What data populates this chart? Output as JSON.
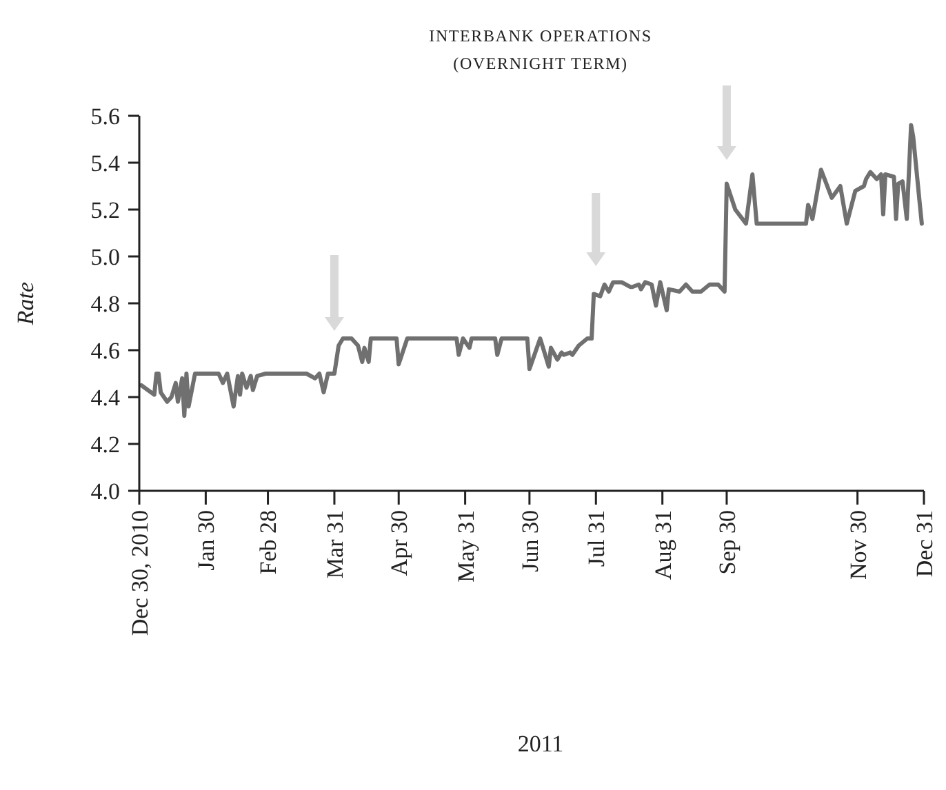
{
  "chart_data": {
    "type": "line",
    "title": "INTERBANK OPERATIONS",
    "subtitle": "(OVERNIGHT TERM)",
    "xlabel": "2011",
    "ylabel": "Rate",
    "xlim": [
      "2010-12-30",
      "2011-12-31"
    ],
    "xticks": [
      {
        "value": "2010-12-30",
        "label": "Dec 30, 2010"
      },
      {
        "value": "2011-01-30",
        "label": "Jan 30"
      },
      {
        "value": "2011-02-28",
        "label": "Feb 28"
      },
      {
        "value": "2011-03-31",
        "label": "Mar 31"
      },
      {
        "value": "2011-04-30",
        "label": "Apr 30"
      },
      {
        "value": "2011-05-31",
        "label": "May 31"
      },
      {
        "value": "2011-06-30",
        "label": "Jun 30"
      },
      {
        "value": "2011-07-31",
        "label": "Jul 31"
      },
      {
        "value": "2011-08-31",
        "label": "Aug 31"
      },
      {
        "value": "2011-09-30",
        "label": "Sep 30"
      },
      {
        "value": "2011-11-30",
        "label": "Nov 30"
      },
      {
        "value": "2011-12-31",
        "label": "Dec 31"
      }
    ],
    "ylim": [
      4.0,
      5.6
    ],
    "yticks": [
      {
        "value": 4.0,
        "label": "4.0"
      },
      4.2,
      4.4,
      4.6,
      4.8,
      {
        "value": 5.0,
        "label": "5.0"
      },
      5.2,
      5.4,
      5.6
    ],
    "grid": false,
    "marker": "none",
    "line_style": "solid",
    "series": [
      {
        "color": "#707070",
        "x": [
          "2010-12-31",
          "2011-01-06",
          "2011-01-07",
          "2011-01-08",
          "2011-01-09",
          "2011-01-12",
          "2011-01-14",
          "2011-01-16",
          "2011-01-17",
          "2011-01-19",
          "2011-01-20",
          "2011-01-21",
          "2011-01-22",
          "2011-01-25",
          "2011-02-05",
          "2011-02-07",
          "2011-02-09",
          "2011-02-12",
          "2011-02-14",
          "2011-02-15",
          "2011-02-16",
          "2011-02-18",
          "2011-02-20",
          "2011-02-21",
          "2011-02-23",
          "2011-02-27",
          "2011-03-18",
          "2011-03-22",
          "2011-03-24",
          "2011-03-26",
          "2011-03-28",
          "2011-03-31",
          "2011-04-02",
          "2011-04-04",
          "2011-04-08",
          "2011-04-11",
          "2011-04-13",
          "2011-04-14",
          "2011-04-16",
          "2011-04-17",
          "2011-04-29",
          "2011-04-30",
          "2011-05-04",
          "2011-05-27",
          "2011-05-28",
          "2011-05-30",
          "2011-06-02",
          "2011-06-03",
          "2011-06-14",
          "2011-06-15",
          "2011-06-17",
          "2011-06-29",
          "2011-06-30",
          "2011-07-05",
          "2011-07-09",
          "2011-07-10",
          "2011-07-13",
          "2011-07-15",
          "2011-07-16",
          "2011-07-19",
          "2011-07-20",
          "2011-07-23",
          "2011-07-27",
          "2011-07-29",
          "2011-07-30",
          "2011-08-02",
          "2011-08-04",
          "2011-08-06",
          "2011-08-08",
          "2011-08-12",
          "2011-08-16",
          "2011-08-17",
          "2011-08-20",
          "2011-08-21",
          "2011-08-23",
          "2011-08-26",
          "2011-08-28",
          "2011-08-30",
          "2011-09-02",
          "2011-09-03",
          "2011-09-08",
          "2011-09-11",
          "2011-09-14",
          "2011-09-18",
          "2011-09-22",
          "2011-09-26",
          "2011-09-29",
          "2011-09-30",
          "2011-10-04",
          "2011-10-09",
          "2011-10-12",
          "2011-10-14",
          "2011-11-06",
          "2011-11-07",
          "2011-11-09",
          "2011-11-13",
          "2011-11-18",
          "2011-11-22",
          "2011-11-25",
          "2011-11-29",
          "2011-12-03",
          "2011-12-04",
          "2011-12-06",
          "2011-12-09",
          "2011-12-11",
          "2011-12-12",
          "2011-12-13",
          "2011-12-17",
          "2011-12-18",
          "2011-12-19",
          "2011-12-21",
          "2011-12-23",
          "2011-12-25",
          "2011-12-26",
          "2011-12-29",
          "2011-12-30"
        ],
        "values": [
          4.45,
          4.41,
          4.5,
          4.5,
          4.42,
          4.38,
          4.4,
          4.46,
          4.38,
          4.48,
          4.32,
          4.5,
          4.36,
          4.5,
          4.5,
          4.46,
          4.5,
          4.36,
          4.49,
          4.41,
          4.5,
          4.44,
          4.49,
          4.43,
          4.49,
          4.5,
          4.5,
          4.48,
          4.5,
          4.42,
          4.5,
          4.5,
          4.62,
          4.65,
          4.65,
          4.62,
          4.55,
          4.61,
          4.55,
          4.65,
          4.65,
          4.54,
          4.65,
          4.65,
          4.58,
          4.65,
          4.61,
          4.65,
          4.65,
          4.58,
          4.65,
          4.65,
          4.52,
          4.65,
          4.53,
          4.61,
          4.56,
          4.59,
          4.58,
          4.59,
          4.58,
          4.62,
          4.65,
          4.65,
          4.84,
          4.83,
          4.88,
          4.85,
          4.89,
          4.89,
          4.87,
          4.87,
          4.88,
          4.86,
          4.89,
          4.88,
          4.79,
          4.89,
          4.77,
          4.86,
          4.85,
          4.88,
          4.85,
          4.85,
          4.88,
          4.88,
          4.85,
          5.31,
          5.2,
          5.14,
          5.35,
          5.14,
          5.14,
          5.22,
          5.16,
          5.37,
          5.25,
          5.3,
          5.14,
          5.28,
          5.3,
          5.33,
          5.36,
          5.33,
          5.35,
          5.18,
          5.35,
          5.34,
          5.16,
          5.31,
          5.32,
          5.16,
          5.56,
          5.51,
          5.23,
          5.14
        ]
      }
    ]
  }
}
